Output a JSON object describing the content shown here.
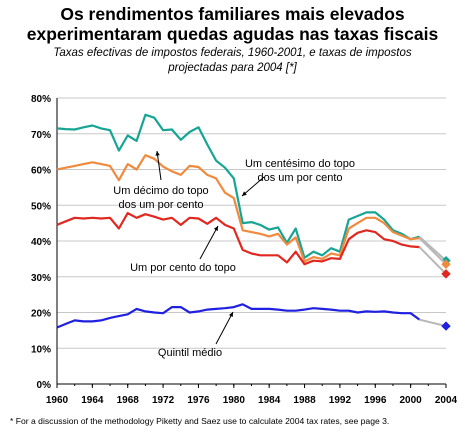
{
  "title_line1": "Os rendimentos familiares mais elevados",
  "title_line2": "experimentaram quedas agudas nas taxas fiscais",
  "subtitle_line1": "Taxas efectivas de impostos federais, 1960-2001, e taxas de impostos",
  "subtitle_line2": "projectadas para 2004 [*]",
  "footnote": "* For a discussion of the methodology Piketty and Saez use to calculate 2004 tax rates, see page 3.",
  "chart_data": {
    "type": "line",
    "ylim": [
      0,
      80
    ],
    "yticks": [
      "0%",
      "10%",
      "20%",
      "30%",
      "40%",
      "50%",
      "60%",
      "70%",
      "80%"
    ],
    "xlim": [
      1960,
      2004
    ],
    "xticks": [
      "1960",
      "1964",
      "1968",
      "1972",
      "1976",
      "1980",
      "1984",
      "1988",
      "1992",
      "1996",
      "2000",
      "2004"
    ],
    "grid": true,
    "series": [
      {
        "name": "Um centésimo do topo dos um por cento",
        "color": "#16a594",
        "label_line1": "Um centésimo do topo",
        "label_line2": "dos um por cento",
        "x": [
          1960,
          1961,
          1962,
          1963,
          1964,
          1965,
          1966,
          1967,
          1968,
          1969,
          1970,
          1971,
          1972,
          1973,
          1974,
          1975,
          1976,
          1977,
          1978,
          1979,
          1980,
          1981,
          1982,
          1983,
          1984,
          1985,
          1986,
          1987,
          1988,
          1989,
          1990,
          1991,
          1992,
          1993,
          1994,
          1995,
          1996,
          1997,
          1998,
          1999,
          2000,
          2001
        ],
        "values": [
          71.5,
          71.3,
          71.2,
          71.8,
          72.3,
          71.5,
          71,
          65.3,
          69.5,
          68,
          75.3,
          74.5,
          71,
          71.2,
          68.3,
          70.5,
          71.8,
          67,
          62.5,
          60.5,
          57.5,
          45,
          45.3,
          44.5,
          43.2,
          43.8,
          39.5,
          43.5,
          35.3,
          37,
          36,
          38,
          37,
          46,
          47,
          48,
          48,
          46,
          43,
          42,
          40.5,
          41.2
        ],
        "projection_2004": 34.5
      },
      {
        "name": "Um décimo do topo dos um por cento",
        "color": "#f08a3e",
        "label_line1": "Um décimo do topo",
        "label_line2": "dos um por cento",
        "x": [
          1960,
          1961,
          1962,
          1963,
          1964,
          1965,
          1966,
          1967,
          1968,
          1969,
          1970,
          1971,
          1972,
          1973,
          1974,
          1975,
          1976,
          1977,
          1978,
          1979,
          1980,
          1981,
          1982,
          1983,
          1984,
          1985,
          1986,
          1987,
          1988,
          1989,
          1990,
          1991,
          1992,
          1993,
          1994,
          1995,
          1996,
          1997,
          1998,
          1999,
          2000,
          2001
        ],
        "values": [
          60,
          60.5,
          61,
          61.5,
          62,
          61.5,
          61,
          57,
          61.5,
          60,
          64,
          63,
          60.8,
          59.5,
          58.5,
          61,
          60.7,
          58.5,
          57.5,
          53.5,
          52,
          43,
          42.5,
          42,
          41.3,
          42,
          39,
          41,
          34.3,
          35.5,
          35,
          36.5,
          36,
          43.5,
          45,
          46.5,
          46.5,
          45,
          42.5,
          41.5,
          40.5,
          40.8
        ],
        "projection_2004": 33.5
      },
      {
        "name": "Um por cento do topo",
        "color": "#e02820",
        "label_line1": "Um por cento do topo",
        "x": [
          1960,
          1961,
          1962,
          1963,
          1964,
          1965,
          1966,
          1967,
          1968,
          1969,
          1970,
          1971,
          1972,
          1973,
          1974,
          1975,
          1976,
          1977,
          1978,
          1979,
          1980,
          1981,
          1982,
          1983,
          1984,
          1985,
          1986,
          1987,
          1988,
          1989,
          1990,
          1991,
          1992,
          1993,
          1994,
          1995,
          1996,
          1997,
          1998,
          1999,
          2000,
          2001
        ],
        "values": [
          44.5,
          45.5,
          46.5,
          46.3,
          46.5,
          46.3,
          46.5,
          43.5,
          47.8,
          46.5,
          47.5,
          46.8,
          46,
          46.5,
          44.5,
          46.5,
          46.3,
          44.8,
          46.5,
          44.5,
          43.5,
          37.5,
          36.5,
          36,
          36,
          36,
          34,
          37,
          33.5,
          34.5,
          34.3,
          35.2,
          35,
          40.5,
          42.3,
          43,
          42.5,
          40.5,
          40,
          39,
          38.5,
          38.3
        ],
        "projection_2004": 30.8
      },
      {
        "name": "Quintil médio",
        "color": "#2020e0",
        "label_line1": "Quintil médio",
        "x": [
          1960,
          1961,
          1962,
          1963,
          1964,
          1965,
          1966,
          1967,
          1968,
          1969,
          1970,
          1971,
          1972,
          1973,
          1974,
          1975,
          1976,
          1977,
          1978,
          1979,
          1980,
          1981,
          1982,
          1983,
          1984,
          1985,
          1986,
          1987,
          1988,
          1989,
          1990,
          1991,
          1992,
          1993,
          1994,
          1995,
          1996,
          1997,
          1998,
          1999,
          2000,
          2001
        ],
        "values": [
          15.8,
          16.8,
          17.8,
          17.5,
          17.5,
          17.8,
          18.5,
          19,
          19.5,
          21,
          20.3,
          20,
          19.8,
          21.5,
          21.5,
          20,
          20.3,
          20.8,
          21,
          21.2,
          21.5,
          22.3,
          21,
          21,
          21,
          20.8,
          20.5,
          20.5,
          20.8,
          21.2,
          21,
          20.8,
          20.5,
          20.5,
          20,
          20.3,
          20.2,
          20.3,
          20,
          19.8,
          19.8,
          18
        ],
        "projection_2004": 16.2
      }
    ]
  }
}
